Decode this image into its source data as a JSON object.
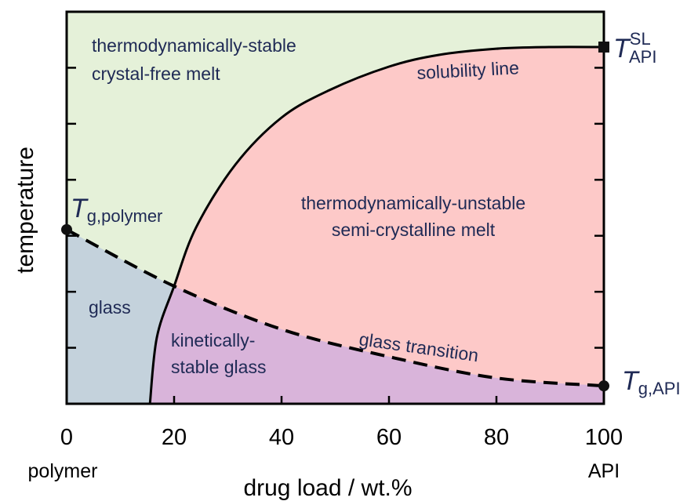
{
  "chart_data": {
    "type": "phase",
    "xlabel": "drug load / wt.%",
    "ylabel": "temperature",
    "xlim": [
      0,
      100
    ],
    "ylim": [
      0,
      7
    ],
    "xticks": [
      0,
      20,
      40,
      60,
      80,
      100
    ],
    "yticks": [
      1,
      2,
      3,
      4,
      5,
      6
    ],
    "x_end_labels": [
      "polymer",
      "API"
    ],
    "series": [
      {
        "name": "solubility line",
        "color": "#000000",
        "dashed": false,
        "x": [
          15.5,
          16.8,
          20,
          24.1,
          31.4,
          40,
          48.9,
          60,
          69.3,
          80,
          89.8,
          100
        ],
        "values": [
          0,
          1.19,
          2.1,
          3.15,
          4.27,
          5.11,
          5.6,
          6.02,
          6.23,
          6.34,
          6.37,
          6.37
        ]
      },
      {
        "name": "glass transition",
        "color": "#000000",
        "dashed": true,
        "x": [
          0,
          20,
          40,
          60,
          80,
          100
        ],
        "values": [
          3.11,
          2.1,
          1.33,
          0.84,
          0.46,
          0.32
        ]
      }
    ],
    "regions": [
      {
        "lines": [
          "thermodynamically-stable",
          "crystal-free melt"
        ],
        "color": "#e5f1d9"
      },
      {
        "lines": [
          "thermodynamically-unstable",
          "semi-crystalline melt"
        ],
        "color": "#fdc9c8"
      },
      {
        "lines": [
          "glass"
        ],
        "color": "#c4d2dc"
      },
      {
        "lines": [
          "kinetically-",
          "stable glass"
        ],
        "color": "#d9b4da"
      }
    ],
    "temperature_labels": [
      {
        "symbol": "T",
        "sub": "g,polymer"
      },
      {
        "symbol": "T",
        "sub": "API",
        "sup": "SL"
      },
      {
        "symbol": "T",
        "sub": "g,API"
      }
    ]
  }
}
